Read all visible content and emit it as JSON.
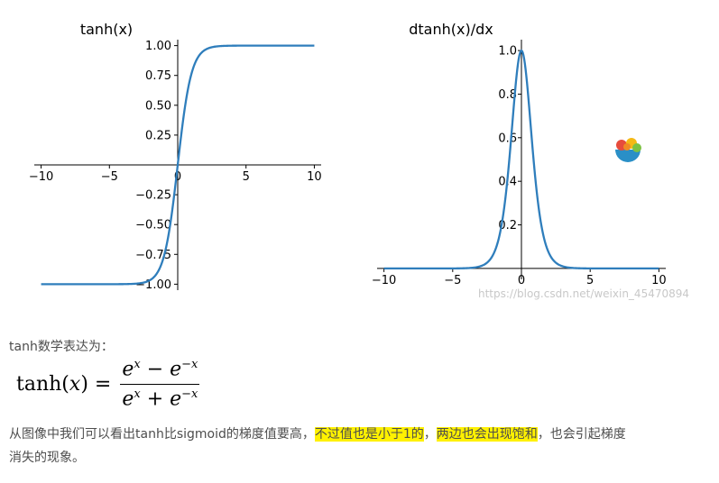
{
  "chart_data": [
    {
      "type": "line",
      "title": "tanh(x)",
      "function": "tanh",
      "x_range": [
        -10,
        10
      ],
      "xlim": [
        -10.5,
        10.5
      ],
      "ylim": [
        -1.05,
        1.05
      ],
      "xticks": [
        -10,
        -5,
        0,
        5,
        10
      ],
      "xtick_labels": [
        "−10",
        "−5",
        "0",
        "5",
        "10"
      ],
      "yticks": [
        1.0,
        0.75,
        0.5,
        0.25,
        -0.25,
        -0.5,
        -0.75,
        -1.0
      ],
      "ytick_labels": [
        "1.00",
        "0.75",
        "0.50",
        "0.25",
        "−0.25",
        "−0.50",
        "−0.75",
        "−1.00"
      ],
      "series": [
        {
          "color": "#2f7ebc"
        }
      ],
      "grid": false,
      "spines": "centered"
    },
    {
      "type": "line",
      "title": "dtanh(x)/dx",
      "function": "dtanh",
      "x_range": [
        -10,
        10
      ],
      "xlim": [
        -10.5,
        10.5
      ],
      "ylim": [
        -0.05,
        1.05
      ],
      "xticks": [
        -10,
        -5,
        0,
        5,
        10
      ],
      "xtick_labels": [
        "−10",
        "−5",
        "0",
        "5",
        "10"
      ],
      "yticks": [
        1.0,
        0.8,
        0.6,
        0.4,
        0.2
      ],
      "ytick_labels": [
        "1.0",
        "0.8",
        "0.6",
        "0.4",
        "0.2"
      ],
      "series": [
        {
          "color": "#2f7ebc"
        }
      ],
      "grid": false,
      "spines": "centered"
    }
  ],
  "watermark": "https://blog.csdn.net/weixin_45470894",
  "text": {
    "intro": "tanh数学表达为：",
    "formula_lhs": "tanh(",
    "formula_var": "x",
    "formula_rhs": ") =",
    "conclusion_part1": "从图像中我们可以看出tanh比sigmoid的梯度值要高，",
    "conclusion_hl1": "不过值也是小于1的",
    "conclusion_part2": "，",
    "conclusion_hl2": "两边也会出现饱和",
    "conclusion_part3": "，也会引起梯度",
    "conclusion_line2": "消失的现象。"
  }
}
